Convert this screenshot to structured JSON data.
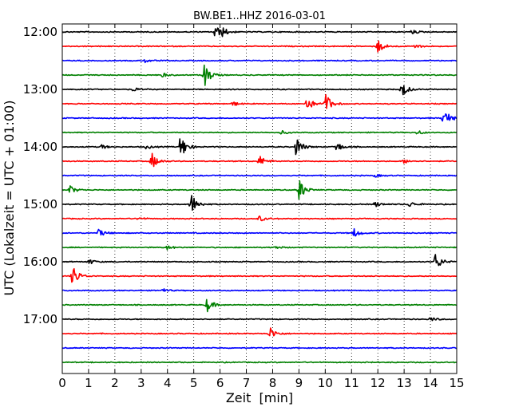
{
  "chart_data": {
    "type": "line",
    "title": "BW.BE1..HHZ 2016-03-01",
    "xlabel": "Zeit  [min]",
    "ylabel": "UTC (Lokalzeit = UTC + 01:00)",
    "xlim": [
      0,
      15
    ],
    "x_ticks": [
      "0",
      "1",
      "2",
      "3",
      "4",
      "5",
      "6",
      "7",
      "8",
      "9",
      "10",
      "11",
      "12",
      "13",
      "14",
      "15"
    ],
    "row_interval_min": 15,
    "y_tick_labels": [
      {
        "label": "12:00",
        "row": 0
      },
      {
        "label": "13:00",
        "row": 4
      },
      {
        "label": "14:00",
        "row": 8
      },
      {
        "label": "15:00",
        "row": 12
      },
      {
        "label": "16:00",
        "row": 16
      },
      {
        "label": "17:00",
        "row": 20
      }
    ],
    "grid": "vertical dotted at each minute",
    "color_cycle": [
      "#000000",
      "#ff0000",
      "#0000ff",
      "#008000"
    ],
    "traces": [
      {
        "start": "12:00",
        "color": "#000000",
        "events": [
          [
            5.8,
            1.0
          ],
          [
            6.1,
            0.5
          ],
          [
            13.3,
            0.3
          ]
        ]
      },
      {
        "start": "12:15",
        "color": "#ff0000",
        "events": [
          [
            12.0,
            1.0
          ],
          [
            13.4,
            0.3
          ]
        ]
      },
      {
        "start": "12:30",
        "color": "#0000ff",
        "events": [
          [
            3.1,
            0.3
          ]
        ]
      },
      {
        "start": "12:45",
        "color": "#008000",
        "events": [
          [
            5.4,
            1.8
          ],
          [
            3.8,
            0.3
          ]
        ]
      },
      {
        "start": "13:00",
        "color": "#000000",
        "events": [
          [
            12.9,
            1.2
          ],
          [
            2.7,
            0.3
          ]
        ]
      },
      {
        "start": "13:15",
        "color": "#ff0000",
        "events": [
          [
            10.0,
            1.6
          ],
          [
            9.3,
            1.0
          ],
          [
            6.5,
            0.3
          ]
        ]
      },
      {
        "start": "13:30",
        "color": "#0000ff",
        "events": [
          [
            14.5,
            1.6
          ]
        ]
      },
      {
        "start": "13:45",
        "color": "#008000",
        "events": [
          [
            13.5,
            0.3
          ],
          [
            8.3,
            0.3
          ]
        ]
      },
      {
        "start": "14:00",
        "color": "#000000",
        "events": [
          [
            4.5,
            1.8
          ],
          [
            8.9,
            1.5
          ],
          [
            10.4,
            0.8
          ],
          [
            1.5,
            0.3
          ],
          [
            3.2,
            0.3
          ]
        ]
      },
      {
        "start": "14:15",
        "color": "#ff0000",
        "events": [
          [
            3.4,
            1.2
          ],
          [
            7.5,
            0.8
          ],
          [
            13.0,
            0.3
          ]
        ]
      },
      {
        "start": "14:30",
        "color": "#0000ff",
        "events": [
          [
            11.9,
            0.2
          ]
        ]
      },
      {
        "start": "14:45",
        "color": "#008000",
        "events": [
          [
            9.0,
            1.6
          ],
          [
            0.3,
            0.6
          ]
        ]
      },
      {
        "start": "15:00",
        "color": "#000000",
        "events": [
          [
            4.9,
            1.6
          ],
          [
            11.9,
            0.4
          ],
          [
            13.2,
            0.4
          ]
        ]
      },
      {
        "start": "15:15",
        "color": "#ff0000",
        "events": [
          [
            7.5,
            0.4
          ],
          [
            2.9,
            0.2
          ]
        ]
      },
      {
        "start": "15:30",
        "color": "#0000ff",
        "events": [
          [
            1.4,
            0.6
          ],
          [
            11.1,
            0.6
          ]
        ]
      },
      {
        "start": "15:45",
        "color": "#008000",
        "events": [
          [
            4.0,
            0.3
          ],
          [
            8.1,
            0.2
          ]
        ]
      },
      {
        "start": "16:00",
        "color": "#000000",
        "events": [
          [
            14.2,
            1.3
          ],
          [
            1.0,
            0.4
          ]
        ]
      },
      {
        "start": "16:15",
        "color": "#ff0000",
        "events": [
          [
            0.4,
            1.6
          ]
        ]
      },
      {
        "start": "16:30",
        "color": "#0000ff",
        "events": [
          [
            3.8,
            0.3
          ]
        ]
      },
      {
        "start": "16:45",
        "color": "#008000",
        "events": [
          [
            5.5,
            1.0
          ]
        ]
      },
      {
        "start": "17:00",
        "color": "#000000",
        "events": [
          [
            14.0,
            0.3
          ]
        ]
      },
      {
        "start": "17:15",
        "color": "#ff0000",
        "events": [
          [
            7.9,
            0.9
          ]
        ]
      },
      {
        "start": "17:30",
        "color": "#0000ff",
        "events": []
      },
      {
        "start": "17:45",
        "color": "#008000",
        "events": []
      }
    ]
  }
}
